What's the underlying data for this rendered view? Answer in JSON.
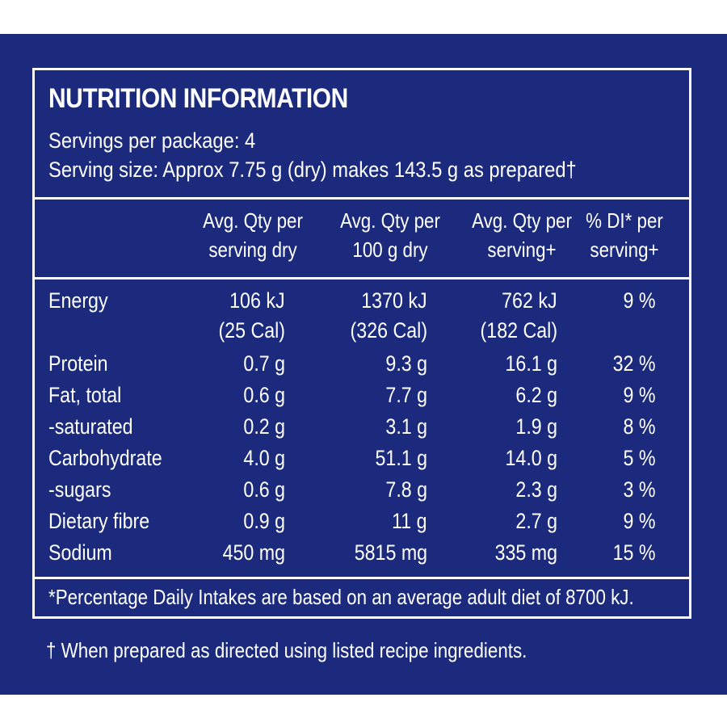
{
  "panel": {
    "title": "NUTRITION INFORMATION",
    "servings_per_package": "Servings per package: 4",
    "serving_size": "Serving size: Approx 7.75 g (dry) makes 143.5 g as prepared†",
    "headers": [
      "Avg. Qty per\nserving dry",
      "Avg. Qty per\n100 g dry",
      "Avg. Qty per\nserving+",
      "% DI* per\nserving+"
    ],
    "rows": [
      {
        "label": "Energy",
        "v1": "106 kJ",
        "v2": "1370 kJ",
        "v3": "762 kJ",
        "v4": "9 %"
      },
      {
        "label": "",
        "v1": "(25 Cal)",
        "v2": "(326 Cal)",
        "v3": "(182 Cal)",
        "v4": ""
      },
      {
        "label": "Protein",
        "v1": "0.7 g",
        "v2": "9.3 g",
        "v3": "16.1 g",
        "v4": "32 %"
      },
      {
        "label": "Fat, total",
        "v1": "0.6 g",
        "v2": "7.7 g",
        "v3": "6.2 g",
        "v4": "9 %"
      },
      {
        "label": "-saturated",
        "v1": "0.2 g",
        "v2": "3.1 g",
        "v3": "1.9 g",
        "v4": "8 %"
      },
      {
        "label": "Carbohydrate",
        "v1": "4.0 g",
        "v2": "51.1 g",
        "v3": "14.0 g",
        "v4": "5 %"
      },
      {
        "label": "-sugars",
        "v1": "0.6 g",
        "v2": "7.8 g",
        "v3": "2.3 g",
        "v4": "3 %"
      },
      {
        "label": "Dietary fibre",
        "v1": "0.9 g",
        "v2": "11 g",
        "v3": "2.7 g",
        "v4": "9 %"
      },
      {
        "label": "Sodium",
        "v1": "450 mg",
        "v2": "5815 mg",
        "v3": "335 mg",
        "v4": "15 %"
      }
    ],
    "footnote": "*Percentage Daily Intakes are based on an average adult diet of 8700 kJ."
  },
  "dagger_note": "† When prepared as directed using listed recipe ingredients.",
  "colors": {
    "background": "#1b2a7c",
    "text": "#ffffff"
  }
}
